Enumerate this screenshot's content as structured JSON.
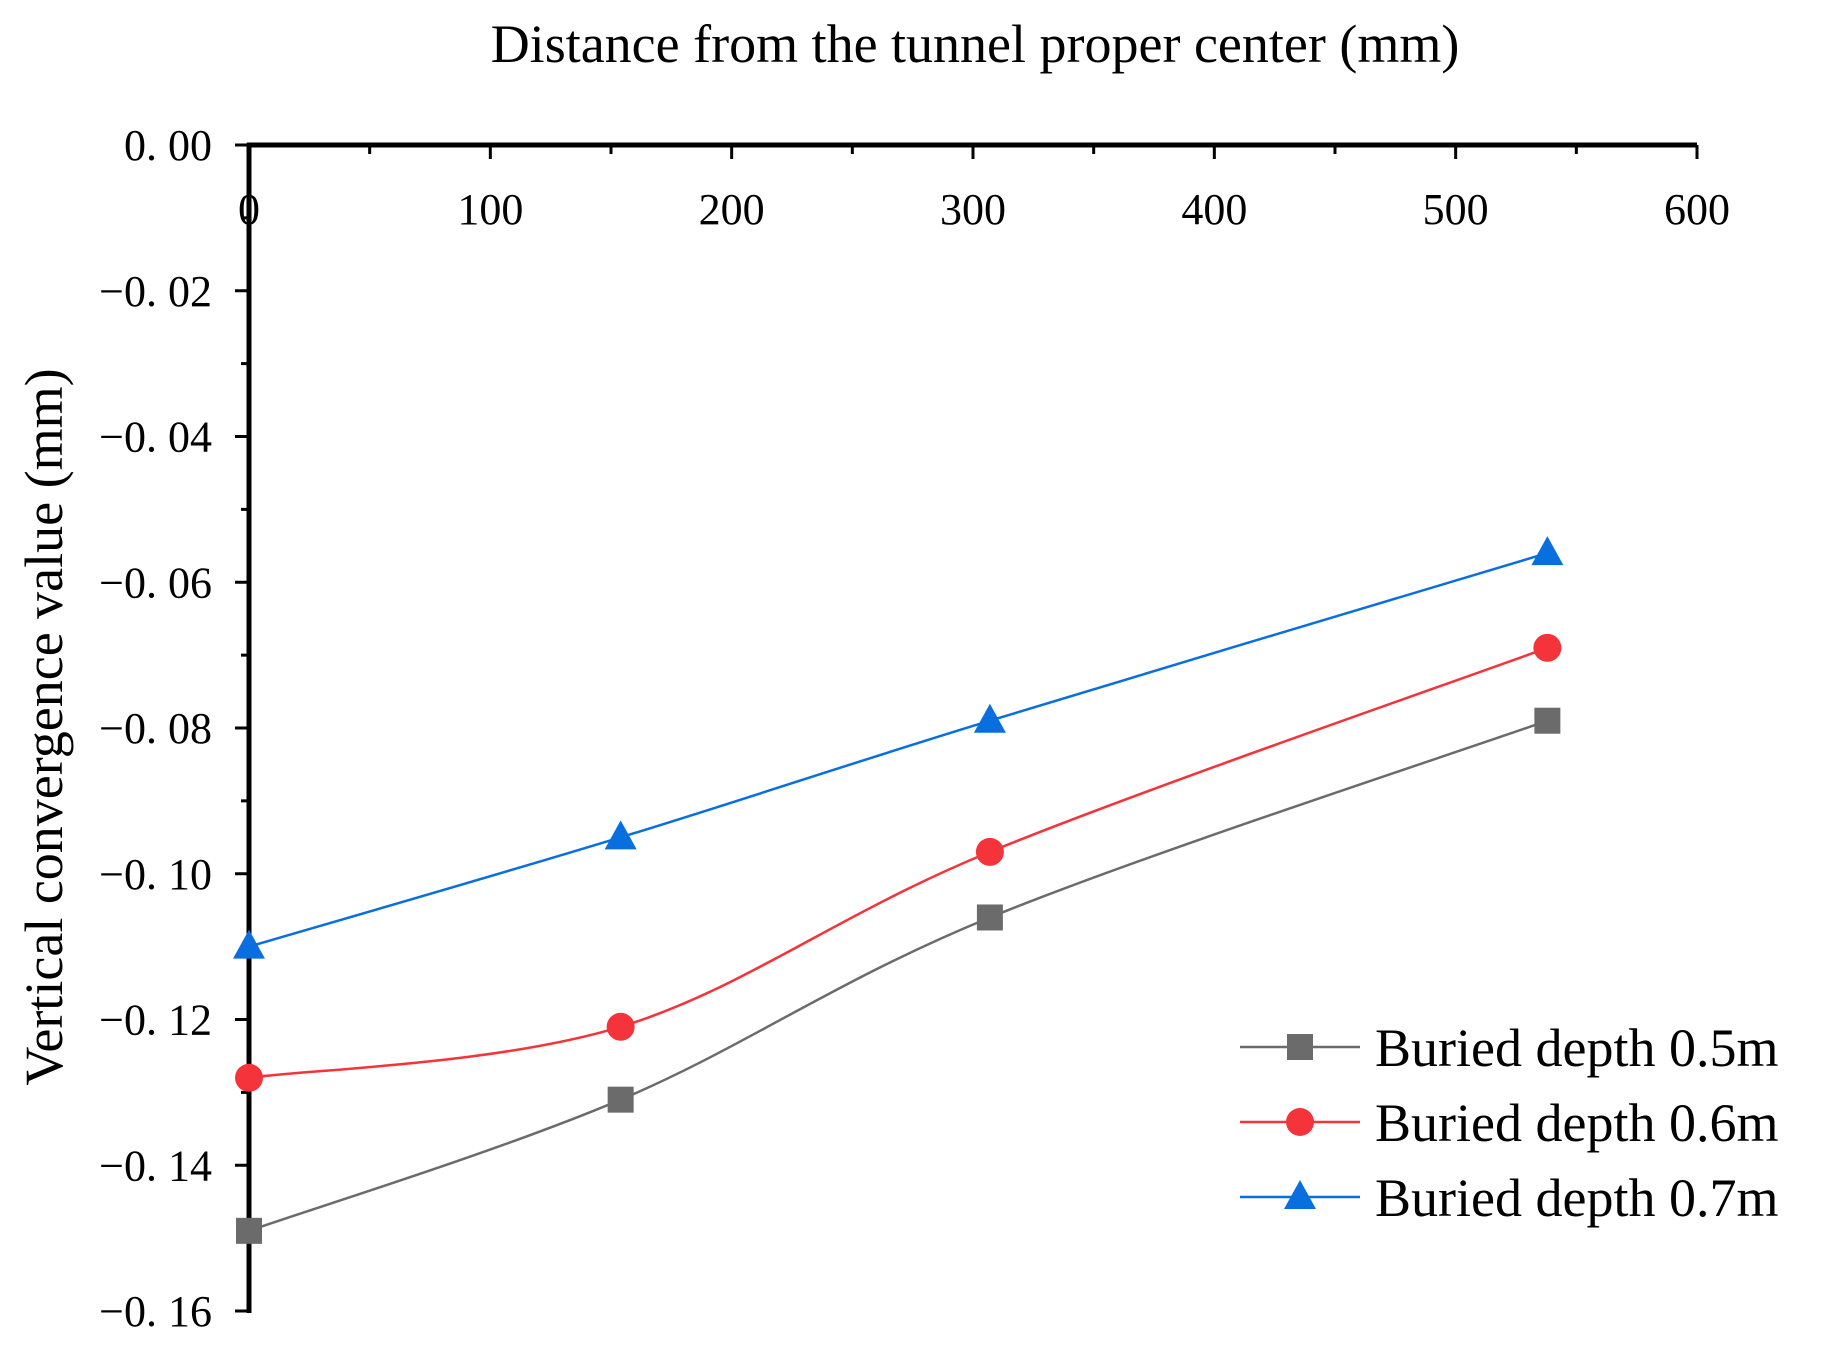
{
  "chart_data": {
    "type": "line",
    "title": "",
    "xlabel": "Distance from the tunnel proper center (mm)",
    "ylabel": "Vertical convergence value (mm)",
    "x_axis_position": "top",
    "xlim": [
      0,
      600
    ],
    "ylim": [
      -0.16,
      0.0
    ],
    "x_ticks": [
      0,
      100,
      200,
      300,
      400,
      500,
      600
    ],
    "x_tick_labels": [
      "0",
      "100",
      "200",
      "300",
      "400",
      "500",
      "600"
    ],
    "y_ticks": [
      0.0,
      -0.02,
      -0.04,
      -0.06,
      -0.08,
      -0.1,
      -0.12,
      -0.14,
      -0.16
    ],
    "y_tick_labels": [
      "0. 00",
      "−0. 02",
      "−0. 04",
      "−0. 06",
      "−0. 08",
      "−0. 10",
      "−0. 12",
      "−0. 14",
      "−0. 16"
    ],
    "grid": false,
    "legend_position": "bottom-right",
    "series": [
      {
        "name": "Buried depth 0.5m",
        "color": "#6b6b6b",
        "marker": "square",
        "x": [
          0,
          154,
          307,
          538
        ],
        "values": [
          -0.149,
          -0.131,
          -0.106,
          -0.079
        ]
      },
      {
        "name": "Buried depth 0.6m",
        "color": "#f5333a",
        "marker": "circle",
        "x": [
          0,
          154,
          307,
          538
        ],
        "values": [
          -0.128,
          -0.121,
          -0.097,
          -0.069
        ]
      },
      {
        "name": "Buried depth 0.7m",
        "color": "#0a6fde",
        "marker": "triangle",
        "x": [
          0,
          154,
          307,
          538
        ],
        "values": [
          -0.11,
          -0.095,
          -0.079,
          -0.056
        ]
      }
    ]
  }
}
